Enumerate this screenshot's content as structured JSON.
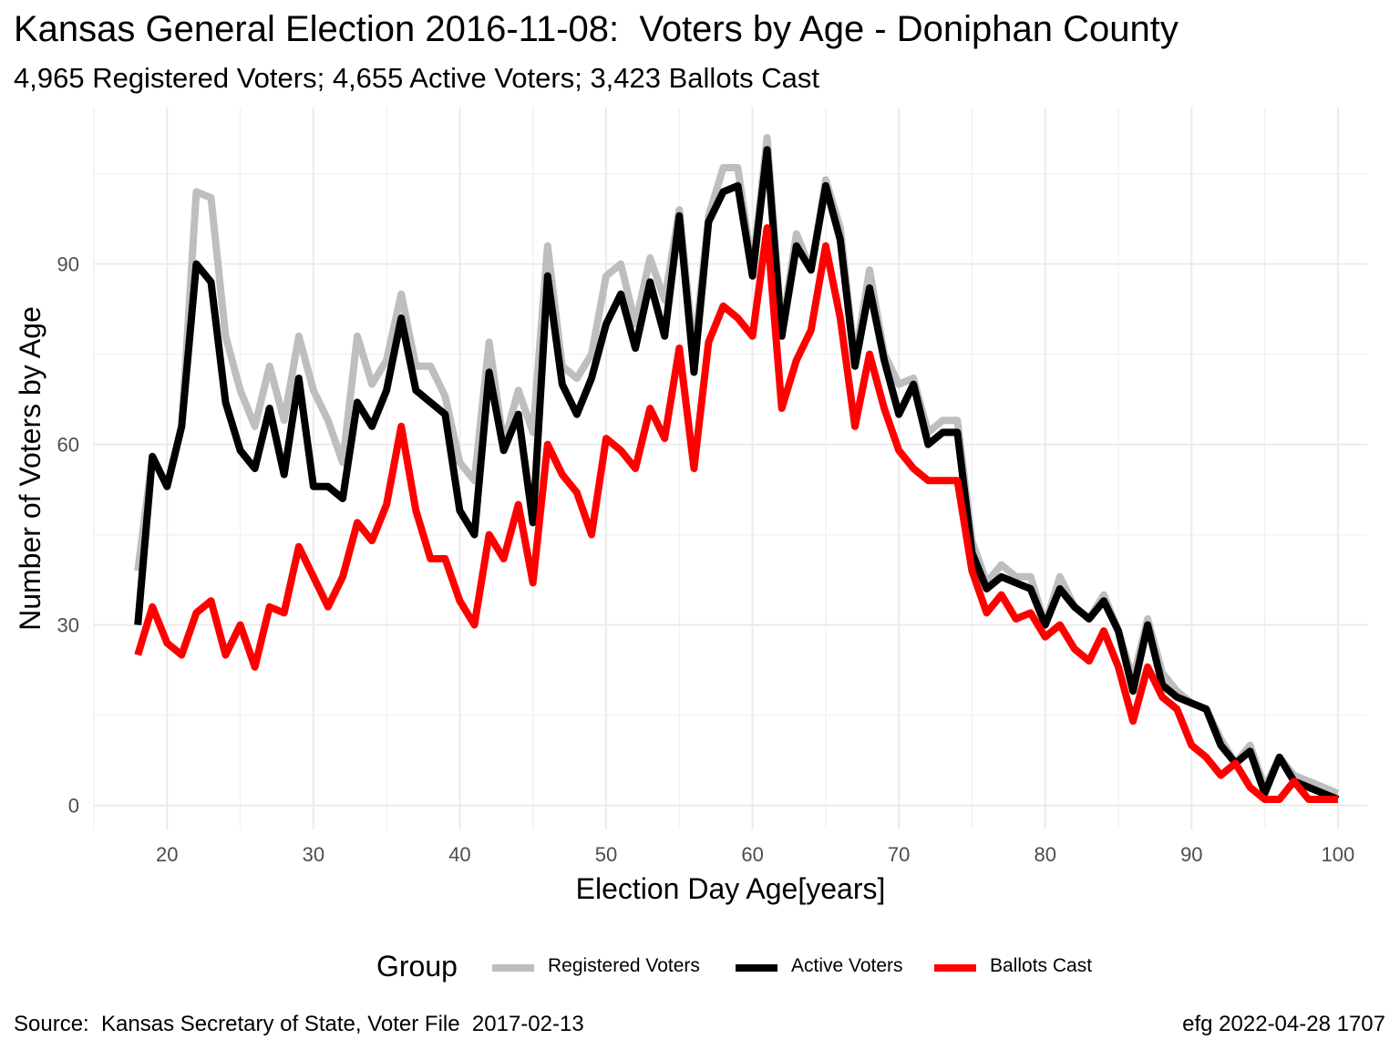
{
  "title": "Kansas General Election 2016-11-08:  Voters by Age - Doniphan County",
  "subtitle": "4,965 Registered Voters; 4,655 Active Voters; 3,423 Ballots Cast",
  "caption_left": "Source:  Kansas Secretary of State, Voter File  2017-02-13",
  "caption_right": "efg 2022-04-28 1707",
  "legend_title": "Group",
  "chart_data": {
    "type": "line",
    "title": "Kansas General Election 2016-11-08:  Voters by Age - Doniphan County",
    "subtitle": "4,965 Registered Voters; 4,655 Active Voters; 3,423 Ballots Cast",
    "xlabel": "Election Day Age[years]",
    "ylabel": "Number of Voters by Age",
    "xlim": [
      15,
      102
    ],
    "ylim": [
      -4,
      116
    ],
    "xticks": [
      20,
      30,
      40,
      50,
      60,
      70,
      80,
      90,
      100
    ],
    "yticks": [
      0,
      30,
      60,
      90
    ],
    "grid": true,
    "legend": "bottom",
    "x_start": 18,
    "series": [
      {
        "name": "Registered Voters",
        "color": "#bebebe",
        "values": [
          39,
          58,
          53,
          63,
          102,
          101,
          78,
          69,
          63,
          73,
          64,
          78,
          69,
          64,
          57,
          78,
          70,
          74,
          85,
          73,
          73,
          68,
          57,
          54,
          77,
          60,
          69,
          62,
          93,
          73,
          71,
          75,
          88,
          90,
          80,
          91,
          84,
          99,
          75,
          98,
          106,
          106,
          89,
          111,
          79,
          95,
          89,
          104,
          96,
          74,
          89,
          75,
          70,
          71,
          62,
          64,
          64,
          44,
          37,
          40,
          38,
          38,
          30,
          38,
          33,
          31,
          35,
          29,
          21,
          31,
          22,
          19,
          17,
          16,
          11,
          7,
          10,
          3,
          8,
          5,
          4,
          3,
          2
        ],
        "values_note": ""
      },
      {
        "name": "Active Voters",
        "color": "#000000",
        "values": [
          30,
          58,
          53,
          63,
          90,
          87,
          67,
          59,
          56,
          66,
          55,
          71,
          53,
          53,
          51,
          67,
          63,
          69,
          81,
          69,
          67,
          65,
          49,
          45,
          72,
          59,
          65,
          47,
          88,
          70,
          65,
          71,
          80,
          85,
          76,
          87,
          78,
          98,
          72,
          97,
          102,
          103,
          88,
          109,
          78,
          93,
          89,
          103,
          94,
          73,
          86,
          74,
          65,
          70,
          60,
          62,
          62,
          42,
          36,
          38,
          37,
          36,
          30,
          36,
          33,
          31,
          34,
          29,
          19,
          30,
          20,
          18,
          17,
          16,
          10,
          7,
          9,
          2,
          8,
          4,
          3,
          2,
          1
        ]
      },
      {
        "name": "Ballots Cast",
        "color": "#ff0000",
        "values": [
          25,
          33,
          27,
          25,
          32,
          34,
          25,
          30,
          23,
          33,
          32,
          43,
          38,
          33,
          38,
          47,
          44,
          50,
          63,
          49,
          41,
          41,
          34,
          30,
          45,
          41,
          50,
          37,
          60,
          55,
          52,
          45,
          61,
          59,
          56,
          66,
          61,
          76,
          56,
          77,
          83,
          81,
          78,
          96,
          66,
          74,
          79,
          93,
          81,
          63,
          75,
          66,
          59,
          56,
          54,
          54,
          54,
          39,
          32,
          35,
          31,
          32,
          28,
          30,
          26,
          24,
          29,
          23,
          14,
          23,
          18,
          16,
          10,
          8,
          5,
          7,
          3,
          1,
          1,
          4,
          1,
          1,
          1
        ]
      }
    ]
  }
}
